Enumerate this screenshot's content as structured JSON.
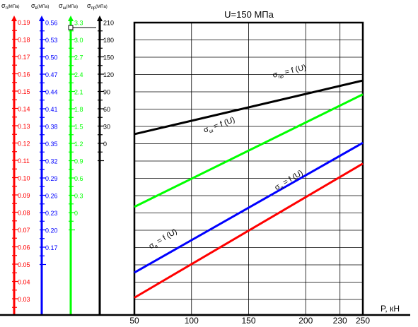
{
  "chart_data": {
    "type": "line",
    "title": "U=150 МПа",
    "xlabel": "P, кН",
    "x_ticks": [
      50,
      100,
      150,
      200,
      230,
      250
    ],
    "xlim": [
      50,
      250
    ],
    "grid": true,
    "series": [
      {
        "key": "pr",
        "label_base": "σ",
        "label_sub": "пр",
        "label_tail": " = f (U)",
        "color": "#000000",
        "x": [
          50,
          250
        ],
        "y": [
          0.127,
          0.158
        ]
      },
      {
        "key": "sh",
        "label_base": "σ",
        "label_sub": "ш",
        "label_tail": " = f (U)",
        "color": "#00ff00",
        "x": [
          50,
          250
        ],
        "y": [
          0.085,
          0.15
        ]
      },
      {
        "key": "v",
        "label_base": "σ",
        "label_sub": "в",
        "label_tail": " = f (U)",
        "color": "#0000ff",
        "x": [
          50,
          250
        ],
        "y": [
          0.047,
          0.122
        ]
      },
      {
        "key": "n",
        "label_base": "σ",
        "label_sub": "п",
        "label_tail": " = f (U)",
        "color": "#ff0000",
        "x": [
          50,
          250
        ],
        "y": [
          0.0325,
          0.11
        ]
      }
    ],
    "y_axes": [
      {
        "key": "n",
        "title_base": "σ",
        "title_sub": "п",
        "title_tail": "(МПа)",
        "color": "#ff0000",
        "ticks": [
          "0.03",
          "0.04",
          "0.05",
          "0.06",
          "0.07",
          "0.08",
          "0.09",
          "0.10",
          "0.11",
          "0.12",
          "0.13",
          "0.14",
          "0.15",
          "0.16",
          "0.17",
          "0.18",
          "0.19"
        ]
      },
      {
        "key": "v",
        "title_base": "σ",
        "title_sub": "в",
        "title_tail": "(МПа)",
        "color": "#0000ff",
        "ticks": [
          "0.17",
          "0.20",
          "0.23",
          "0.26",
          "0.29",
          "0.32",
          "0.35",
          "0.38",
          "0.41",
          "0.44",
          "0.47",
          "0.50",
          "0.53",
          "0.56"
        ]
      },
      {
        "key": "sh",
        "title_base": "σ",
        "title_sub": "ш",
        "title_tail": "(МПа)",
        "color": "#00ff00",
        "ticks": [
          "0",
          "0.3",
          "0.6",
          "0.9",
          "1.2",
          "1.5",
          "1.8",
          "2.1",
          "2.4",
          "2.7",
          "3.0",
          "3.3"
        ]
      },
      {
        "key": "pr",
        "title_base": "σ",
        "title_sub": "пр",
        "title_tail": "(МПа)",
        "color": "#000000",
        "ticks": [
          "0",
          "30",
          "60",
          "90",
          "120",
          "150",
          "180",
          "210"
        ]
      }
    ]
  }
}
